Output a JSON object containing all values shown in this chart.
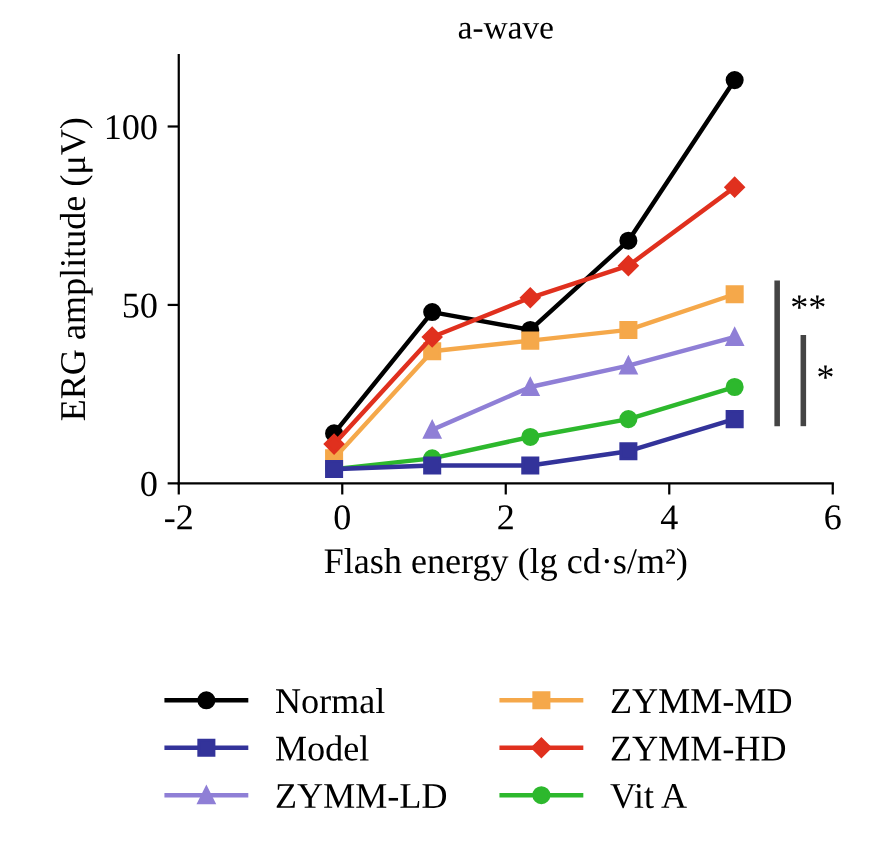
{
  "chart_data": {
    "type": "line",
    "title": "a-wave",
    "xlabel": "Flash energy (lg cd·s/m²)",
    "ylabel": "ERG amplitude (μV)",
    "x": [
      -0.1,
      1.1,
      2.3,
      3.5,
      4.8
    ],
    "series": [
      {
        "name": "Normal",
        "color": "#000000",
        "marker": "circle",
        "values": [
          14,
          48,
          43,
          68,
          113
        ]
      },
      {
        "name": "Model",
        "color": "#33339a",
        "marker": "square",
        "values": [
          4,
          5,
          5,
          9,
          18
        ]
      },
      {
        "name": "ZYMM-LD",
        "color": "#8f7fd6",
        "marker": "triangle",
        "values": [
          null,
          15,
          27,
          33,
          41
        ]
      },
      {
        "name": "ZYMM-MD",
        "color": "#f5a84a",
        "marker": "square",
        "values": [
          7,
          37,
          40,
          43,
          53
        ]
      },
      {
        "name": "ZYMM-HD",
        "color": "#e0301e",
        "marker": "diamond",
        "values": [
          11,
          41,
          52,
          61,
          83
        ]
      },
      {
        "name": "Vit A",
        "color": "#2db82d",
        "marker": "circle",
        "values": [
          4,
          7,
          13,
          18,
          27
        ]
      }
    ],
    "xlim": [
      -2,
      6
    ],
    "xticks": [
      -2,
      0,
      2,
      4,
      6
    ],
    "ylim": [
      0,
      120
    ],
    "yticks": [
      0,
      50,
      100
    ],
    "grid": false,
    "legend": "bottom",
    "line_style": "solid",
    "annotations": [
      "**",
      "*"
    ]
  }
}
